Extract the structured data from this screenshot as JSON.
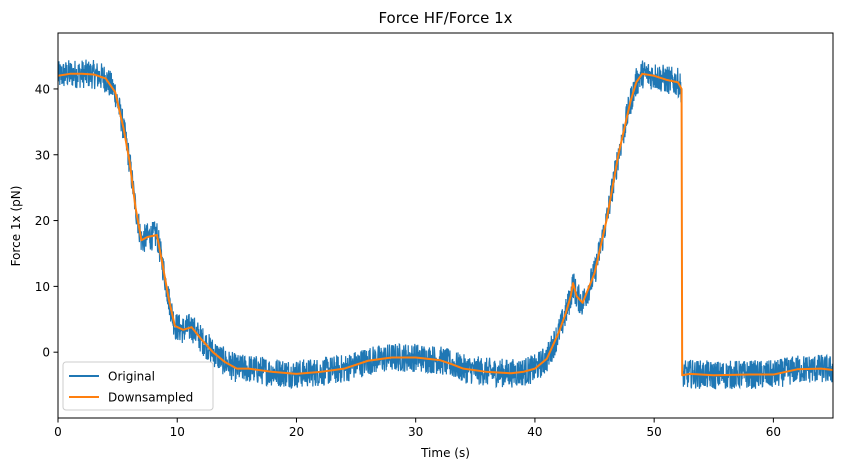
{
  "chart_data": {
    "type": "line",
    "title": "Force HF/Force 1x",
    "xlabel": "Time (s)",
    "ylabel": "Force 1x (pN)",
    "xlim": [
      0,
      65
    ],
    "ylim": [
      -10,
      48.5
    ],
    "x_ticks": [
      0,
      10,
      20,
      30,
      40,
      50,
      60
    ],
    "x_tick_labels": [
      "0",
      "10",
      "20",
      "30",
      "40",
      "50",
      "60"
    ],
    "y_ticks": [
      0,
      10,
      20,
      30,
      40
    ],
    "y_tick_labels": [
      "0",
      "10",
      "20",
      "30",
      "40"
    ],
    "grid": false,
    "legend_position": "lower-left",
    "series": [
      {
        "name": "Original",
        "color": "#1f77b4",
        "style": "noisy band",
        "noise_amplitude": 2.2,
        "x": [
          0,
          1,
          2,
          3,
          4,
          4.8,
          5.5,
          6,
          6.5,
          7,
          7.5,
          8.3,
          8.7,
          9.3,
          9.8,
          10.5,
          11.2,
          12,
          13,
          14,
          15,
          16,
          18,
          20,
          22,
          24,
          26,
          28,
          30,
          32,
          33,
          34,
          36,
          38,
          39,
          40,
          41,
          42,
          42.6,
          43,
          43.2,
          43.5,
          44,
          45,
          46,
          47,
          48,
          48.5,
          49,
          50,
          51,
          52,
          52.3,
          52.35,
          53,
          55,
          58,
          60,
          62,
          64,
          65
        ],
        "y": [
          42,
          42.3,
          42.3,
          42.2,
          41.6,
          39.5,
          34,
          29,
          22,
          17,
          17.5,
          17.8,
          14,
          8,
          4,
          3.4,
          3.8,
          2,
          0,
          -1.5,
          -2.5,
          -2.5,
          -3,
          -3.3,
          -3,
          -2.5,
          -1.3,
          -0.8,
          -0.8,
          -1.2,
          -1.8,
          -2.5,
          -3,
          -3.2,
          -3,
          -2.5,
          -1,
          3,
          6,
          8.5,
          10.5,
          8.5,
          7.5,
          12,
          20,
          30,
          38,
          41,
          42.3,
          42,
          41.4,
          41,
          40,
          -3.5,
          -3.3,
          -3.5,
          -3.4,
          -3.4,
          -2.6,
          -2.5,
          -2.7
        ]
      },
      {
        "name": "Downsampled",
        "color": "#ff7f0e",
        "style": "line",
        "x": [
          0,
          1,
          2,
          3,
          4,
          4.8,
          5.5,
          6,
          6.5,
          7,
          7.5,
          8.3,
          8.7,
          9.3,
          9.8,
          10.5,
          11.2,
          12,
          13,
          14,
          15,
          16,
          18,
          20,
          22,
          24,
          26,
          28,
          30,
          32,
          33,
          34,
          36,
          38,
          39,
          40,
          41,
          42,
          42.6,
          43,
          43.2,
          43.5,
          44,
          45,
          46,
          47,
          48,
          48.5,
          49,
          50,
          51,
          52,
          52.3,
          52.35,
          53,
          55,
          58,
          60,
          62,
          64,
          65
        ],
        "y": [
          42,
          42.3,
          42.3,
          42.2,
          41.6,
          39.5,
          34,
          29,
          22,
          17,
          17.5,
          17.8,
          14,
          8,
          4,
          3.4,
          3.8,
          2,
          0,
          -1.5,
          -2.5,
          -2.5,
          -3,
          -3.3,
          -3,
          -2.5,
          -1.3,
          -0.8,
          -0.8,
          -1.2,
          -1.8,
          -2.5,
          -3,
          -3.2,
          -3,
          -2.5,
          -1,
          3,
          6,
          8.5,
          10.5,
          8.5,
          7.5,
          12,
          20,
          30,
          38,
          41,
          42.3,
          42,
          41.4,
          41,
          40,
          -3.5,
          -3.3,
          -3.5,
          -3.4,
          -3.4,
          -2.6,
          -2.5,
          -2.7
        ]
      }
    ]
  }
}
